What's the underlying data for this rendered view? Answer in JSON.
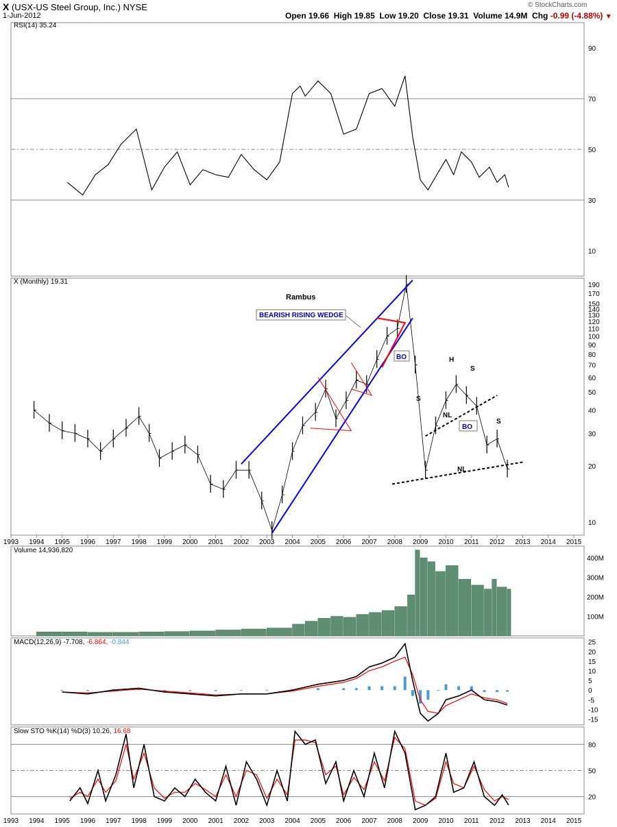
{
  "header": {
    "symbol": "X",
    "name": "(USX-US Steel Group, Inc.)",
    "exchange": "NYSE",
    "date": "1-Jun-2012",
    "open_label": "Open",
    "open": "19.66",
    "high_label": "High",
    "high": "19.85",
    "low_label": "Low",
    "low": "19.20",
    "close_label": "Close",
    "close": "19.31",
    "volume_label": "Volume",
    "volume": "14.9M",
    "chg_label": "Chg",
    "chg": "-0.99 (-4.88%)",
    "watermark": "© StockCharts.com"
  },
  "colors": {
    "price_line": "#000000",
    "trend_blue": "#0000ff",
    "pattern_red": "#ff0000",
    "volume_green": "#5f8f73",
    "macd_hist": "#4a9ad8",
    "signal_red": "#ff0000",
    "rsi_fill": "#6a8f5a"
  },
  "chart_data": [
    {
      "type": "line",
      "panel": "RSI",
      "title": "RSI(14) 35.24",
      "ylim": [
        0,
        100
      ],
      "yticks": [
        10,
        30,
        50,
        70,
        90
      ],
      "reference_lines": [
        30,
        50,
        70
      ],
      "x": [
        1995.2,
        1995.8,
        1996.3,
        1996.8,
        1997.3,
        1997.9,
        1998.5,
        1999.0,
        1999.5,
        2000.0,
        2000.5,
        2001.0,
        2001.5,
        2002.0,
        2002.5,
        2003.0,
        2003.5,
        2004.0,
        2004.3,
        2004.5,
        2005.0,
        2005.5,
        2006.0,
        2006.5,
        2007.0,
        2007.5,
        2008.0,
        2008.4,
        2008.7,
        2009.0,
        2009.3,
        2009.7,
        2010.0,
        2010.3,
        2010.6,
        2011.0,
        2011.3,
        2011.7,
        2012.0,
        2012.3,
        2012.45
      ],
      "values": [
        37,
        32,
        40,
        44,
        52,
        58,
        34,
        43,
        49,
        36,
        42,
        40,
        39,
        48,
        42,
        38,
        45,
        72,
        75,
        71,
        77,
        72,
        56,
        58,
        72,
        74,
        67,
        79,
        55,
        38,
        34,
        41,
        46,
        40,
        49,
        45,
        39,
        43,
        37,
        40,
        35
      ]
    },
    {
      "type": "bar",
      "panel": "Price",
      "title": "X (Monthly) 19.31",
      "scale": "log",
      "yticks": [
        10,
        20,
        30,
        40,
        50,
        60,
        70,
        80,
        90,
        100,
        110,
        120,
        130,
        140,
        150,
        170,
        190
      ],
      "x": [
        1993.9,
        1994.5,
        1995.0,
        1995.5,
        1996.0,
        1996.5,
        1997.0,
        1997.5,
        1998.0,
        1998.4,
        1998.8,
        1999.3,
        1999.8,
        2000.3,
        2000.8,
        2001.3,
        2001.8,
        2002.3,
        2002.8,
        2003.2,
        2003.6,
        2004.0,
        2004.4,
        2004.9,
        2005.3,
        2005.7,
        2006.1,
        2006.5,
        2006.9,
        2007.3,
        2007.7,
        2008.1,
        2008.45,
        2008.8,
        2009.2,
        2009.6,
        2010.0,
        2010.4,
        2010.8,
        2011.2,
        2011.6,
        2012.0,
        2012.4
      ],
      "values": [
        40,
        34,
        31,
        30,
        28,
        24,
        28,
        32,
        37,
        30,
        22,
        24,
        26,
        23,
        16,
        15,
        19,
        19,
        13,
        9,
        14,
        24,
        33,
        39,
        52,
        36,
        45,
        58,
        55,
        75,
        100,
        110,
        190,
        70,
        19,
        33,
        45,
        55,
        48,
        42,
        26,
        28,
        19.3
      ],
      "annotations": [
        "Rambus",
        "BEARISH RISING WEDGE",
        "BO",
        "S",
        "H",
        "S",
        "NL",
        "BO",
        "S",
        "NL"
      ]
    },
    {
      "type": "bar",
      "panel": "Volume",
      "title": "Volume 14,936,820",
      "yticks_labels": [
        "100M",
        "200M",
        "300M",
        "400M"
      ],
      "x": [
        1994.0,
        1995.0,
        1996.0,
        1997.0,
        1998.0,
        1999.0,
        2000.0,
        2001.0,
        2002.0,
        2003.0,
        2004.0,
        2004.5,
        2005.0,
        2005.5,
        2006.0,
        2006.5,
        2007.0,
        2007.5,
        2008.0,
        2008.5,
        2008.8,
        2009.0,
        2009.3,
        2009.6,
        2010.0,
        2010.5,
        2011.0,
        2011.5,
        2011.8,
        2012.0,
        2012.4
      ],
      "values": [
        20,
        20,
        18,
        18,
        20,
        22,
        25,
        30,
        35,
        40,
        60,
        75,
        90,
        100,
        95,
        110,
        120,
        130,
        150,
        210,
        440,
        400,
        380,
        330,
        360,
        290,
        260,
        240,
        290,
        250,
        240
      ]
    },
    {
      "type": "line",
      "panel": "MACD",
      "title": "MACD(12,26,9)",
      "title_values": [
        "-7.708",
        "-6.864",
        "-0.844"
      ],
      "ylim": [
        -18,
        27
      ],
      "yticks": [
        -15,
        -10,
        -5,
        0,
        5,
        10,
        15,
        20,
        25
      ],
      "x": [
        1995.0,
        1996.0,
        1997.0,
        1998.0,
        1999.0,
        2000.0,
        2001.0,
        2002.0,
        2003.0,
        2004.0,
        2005.0,
        2006.0,
        2006.5,
        2007.0,
        2007.5,
        2008.0,
        2008.4,
        2008.7,
        2009.0,
        2009.3,
        2009.7,
        2010.0,
        2010.5,
        2011.0,
        2011.5,
        2012.0,
        2012.4
      ],
      "series": [
        {
          "name": "MACD",
          "values": [
            -1,
            -2,
            0,
            1,
            -1,
            -2,
            -3,
            -2,
            -2,
            0,
            3,
            5,
            7,
            12,
            14,
            17,
            24,
            5,
            -12,
            -16,
            -12,
            -5,
            -3,
            0,
            -5,
            -6,
            -7.708
          ]
        },
        {
          "name": "Signal",
          "values": [
            -1,
            -1.5,
            -0.5,
            0.5,
            -0.5,
            -1.5,
            -2.5,
            -2,
            -2,
            -0.5,
            2,
            4,
            6,
            10,
            12,
            15,
            17,
            8,
            -5,
            -11,
            -12,
            -8,
            -5,
            -2,
            -4,
            -5,
            -6.864
          ]
        },
        {
          "name": "Histogram",
          "values": [
            0,
            -0.5,
            0.5,
            0.5,
            -0.5,
            -0.5,
            -0.5,
            0,
            0,
            0.5,
            1,
            1,
            1,
            2,
            2,
            2,
            7,
            -3,
            -7,
            -5,
            0,
            3,
            2,
            2,
            -1,
            -1,
            -0.844
          ]
        }
      ]
    },
    {
      "type": "line",
      "panel": "Stochastic",
      "title": "Slow STO %K(14) %D(3)",
      "title_values": [
        "10.26",
        "16.68"
      ],
      "ylim": [
        0,
        100
      ],
      "yticks": [
        20,
        50,
        80
      ],
      "x": [
        1995.3,
        1995.7,
        1996.0,
        1996.4,
        1996.7,
        1997.1,
        1997.5,
        1997.8,
        1998.2,
        1998.6,
        1999.0,
        1999.4,
        1999.8,
        2000.2,
        2000.6,
        2001.0,
        2001.4,
        2001.8,
        2002.2,
        2002.6,
        2003.0,
        2003.4,
        2003.8,
        2004.1,
        2004.5,
        2004.9,
        2005.3,
        2005.7,
        2006.0,
        2006.4,
        2006.8,
        2007.2,
        2007.6,
        2008.0,
        2008.4,
        2008.8,
        2009.2,
        2009.6,
        2010.0,
        2010.3,
        2010.7,
        2011.1,
        2011.5,
        2011.9,
        2012.2,
        2012.45
      ],
      "series": [
        {
          "name": "%K",
          "values": [
            15,
            30,
            12,
            50,
            15,
            45,
            92,
            30,
            80,
            20,
            15,
            30,
            20,
            40,
            25,
            15,
            55,
            10,
            60,
            40,
            10,
            50,
            15,
            95,
            80,
            85,
            35,
            60,
            15,
            50,
            20,
            70,
            30,
            95,
            70,
            5,
            10,
            20,
            70,
            25,
            30,
            60,
            20,
            10,
            22,
            10.26
          ]
        },
        {
          "name": "%D",
          "values": [
            18,
            25,
            20,
            40,
            25,
            38,
            80,
            40,
            70,
            30,
            18,
            25,
            25,
            35,
            28,
            20,
            45,
            20,
            50,
            45,
            18,
            40,
            22,
            85,
            85,
            82,
            45,
            55,
            22,
            42,
            28,
            60,
            38,
            88,
            75,
            15,
            10,
            18,
            60,
            35,
            30,
            55,
            28,
            15,
            20,
            16.68
          ]
        }
      ]
    }
  ],
  "axis": {
    "years": [
      "1993",
      "1994",
      "1995",
      "1996",
      "1997",
      "1998",
      "1999",
      "2000",
      "2001",
      "2002",
      "2003",
      "2004",
      "2005",
      "2006",
      "2007",
      "2008",
      "2009",
      "2010",
      "2011",
      "2012",
      "2013",
      "2014",
      "2015"
    ],
    "rsi_labels": [
      "90",
      "70",
      "50",
      "30",
      "10"
    ],
    "price_labels": [
      "190",
      "170",
      "150",
      "140",
      "130",
      "120",
      "110",
      "100",
      "90",
      "80",
      "70",
      "60",
      "50",
      "40",
      "30",
      "20",
      "10"
    ],
    "volume_labels": [
      "400M",
      "300M",
      "200M",
      "100M"
    ],
    "macd_labels": [
      "25",
      "20",
      "15",
      "10",
      "5",
      "0",
      "-5",
      "-10",
      "-15"
    ],
    "sto_labels": [
      "80",
      "50",
      "20"
    ]
  }
}
